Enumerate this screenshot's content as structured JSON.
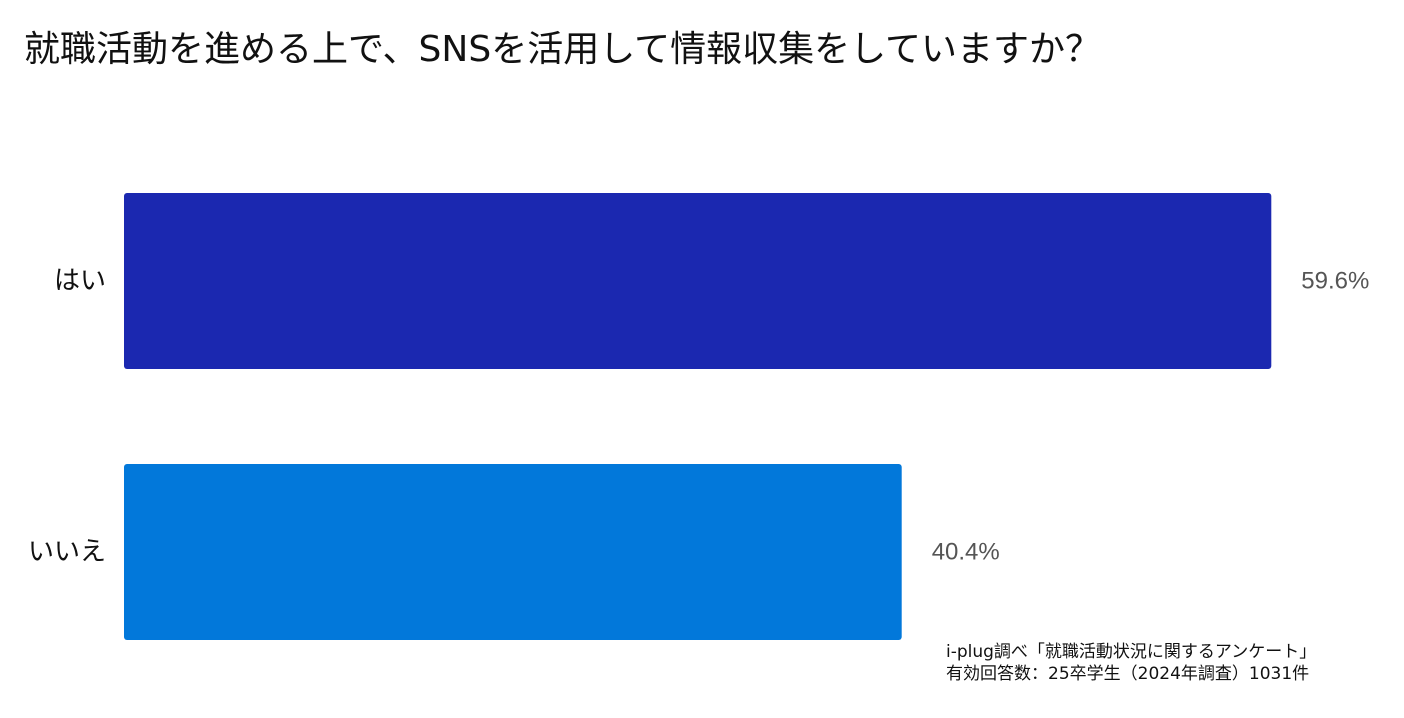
{
  "chart_data": {
    "type": "bar",
    "orientation": "horizontal",
    "title": "就職活動を進める上で、SNSを活用して情報収集をしていますか？",
    "categories": [
      "はい",
      "いいえ"
    ],
    "values": [
      59.6,
      40.4
    ],
    "value_labels": [
      "59.6%",
      "40.4%"
    ],
    "unit": "%",
    "xlim": [
      0,
      60
    ],
    "grid": false,
    "colors": [
      "#1b28b0",
      "#0278da"
    ]
  },
  "source": {
    "line1": "i-plug調べ「就職活動状況に関するアンケート」",
    "line2": "有効回答数：25卒学生（2024年調査）1031件"
  }
}
